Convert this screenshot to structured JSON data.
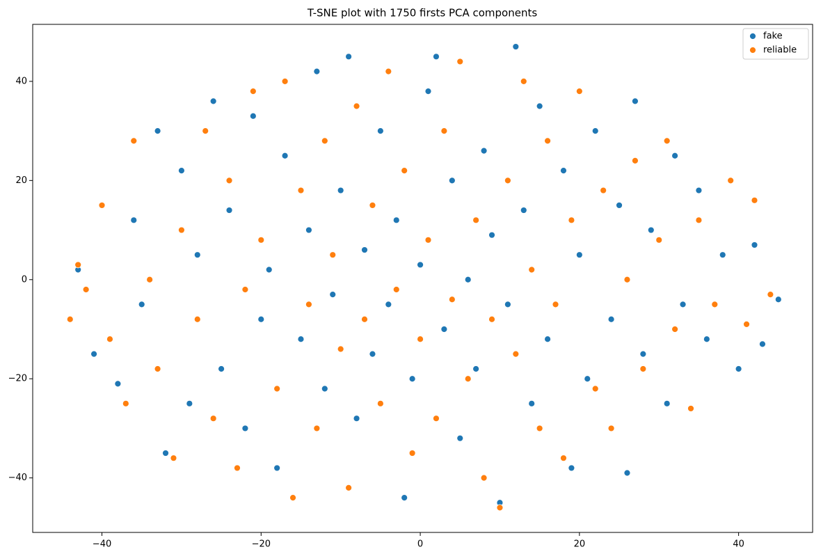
{
  "chart_data": {
    "type": "scatter",
    "title": "T-SNE plot with 1750 firsts PCA components",
    "xlim": [
      -48.7,
      49.3
    ],
    "ylim": [
      -51,
      51.5
    ],
    "xticks": [
      {
        "value": -40,
        "label": "−40"
      },
      {
        "value": -20,
        "label": "−20"
      },
      0,
      20,
      40
    ],
    "yticks": [
      {
        "value": -40,
        "label": "−40"
      },
      {
        "value": -20,
        "label": "−20"
      },
      0,
      20,
      40
    ],
    "legend": "upper right",
    "series": [
      {
        "name": "fake",
        "color": "#1f77b4",
        "x": [
          -43,
          -41,
          -38,
          -36,
          -35,
          -33,
          -32,
          -30,
          -29,
          -28,
          -26,
          -25,
          -24,
          -22,
          -21,
          -20,
          -19,
          -18,
          -17,
          -15,
          -14,
          -13,
          -12,
          -11,
          -10,
          -9,
          -8,
          -7,
          -6,
          -5,
          -4,
          -3,
          -2,
          -1,
          0,
          1,
          2,
          3,
          4,
          5,
          6,
          7,
          8,
          9,
          10,
          11,
          12,
          13,
          14,
          15,
          16,
          18,
          19,
          20,
          21,
          22,
          24,
          25,
          26,
          27,
          28,
          29,
          31,
          32,
          33,
          35,
          36,
          38,
          40,
          42,
          43,
          45
        ],
        "values": [
          2,
          -15,
          -21,
          12,
          -5,
          30,
          -35,
          22,
          -25,
          5,
          36,
          -18,
          14,
          -30,
          33,
          -8,
          2,
          -38,
          25,
          -12,
          10,
          42,
          -22,
          -3,
          18,
          45,
          -28,
          6,
          -15,
          30,
          -5,
          12,
          -44,
          -20,
          3,
          38,
          45,
          -10,
          20,
          -32,
          0,
          -18,
          26,
          9,
          -45,
          -5,
          47,
          14,
          -25,
          35,
          -12,
          22,
          -38,
          5,
          -20,
          30,
          -8,
          15,
          -39,
          36,
          -15,
          10,
          -25,
          25,
          -5,
          18,
          -12,
          5,
          -18,
          7,
          -13,
          -4
        ]
      },
      {
        "name": "reliable",
        "color": "#ff7f0e",
        "x": [
          -44,
          -43,
          -42,
          -40,
          -39,
          -37,
          -36,
          -34,
          -33,
          -31,
          -30,
          -28,
          -27,
          -26,
          -24,
          -23,
          -22,
          -21,
          -20,
          -18,
          -17,
          -16,
          -15,
          -14,
          -13,
          -12,
          -11,
          -10,
          -9,
          -8,
          -7,
          -6,
          -5,
          -4,
          -3,
          -2,
          -1,
          0,
          1,
          2,
          3,
          4,
          5,
          6,
          7,
          8,
          9,
          10,
          11,
          12,
          13,
          14,
          15,
          16,
          17,
          18,
          19,
          20,
          22,
          23,
          24,
          26,
          27,
          28,
          30,
          31,
          32,
          34,
          35,
          37,
          39,
          41,
          42,
          44
        ],
        "values": [
          -8,
          3,
          -2,
          15,
          -12,
          -25,
          28,
          0,
          -18,
          -36,
          10,
          -8,
          30,
          -28,
          20,
          -38,
          -2,
          38,
          8,
          -22,
          40,
          -44,
          18,
          -5,
          -30,
          28,
          5,
          -14,
          -42,
          35,
          -8,
          15,
          -25,
          42,
          -2,
          22,
          -35,
          -12,
          8,
          -28,
          30,
          -4,
          44,
          -20,
          12,
          -40,
          -8,
          -46,
          20,
          -15,
          40,
          2,
          -30,
          28,
          -5,
          -36,
          12,
          38,
          -22,
          18,
          -30,
          0,
          24,
          -18,
          8,
          28,
          -10,
          -26,
          12,
          -5,
          20,
          -9,
          16,
          -3
        ]
      }
    ]
  }
}
